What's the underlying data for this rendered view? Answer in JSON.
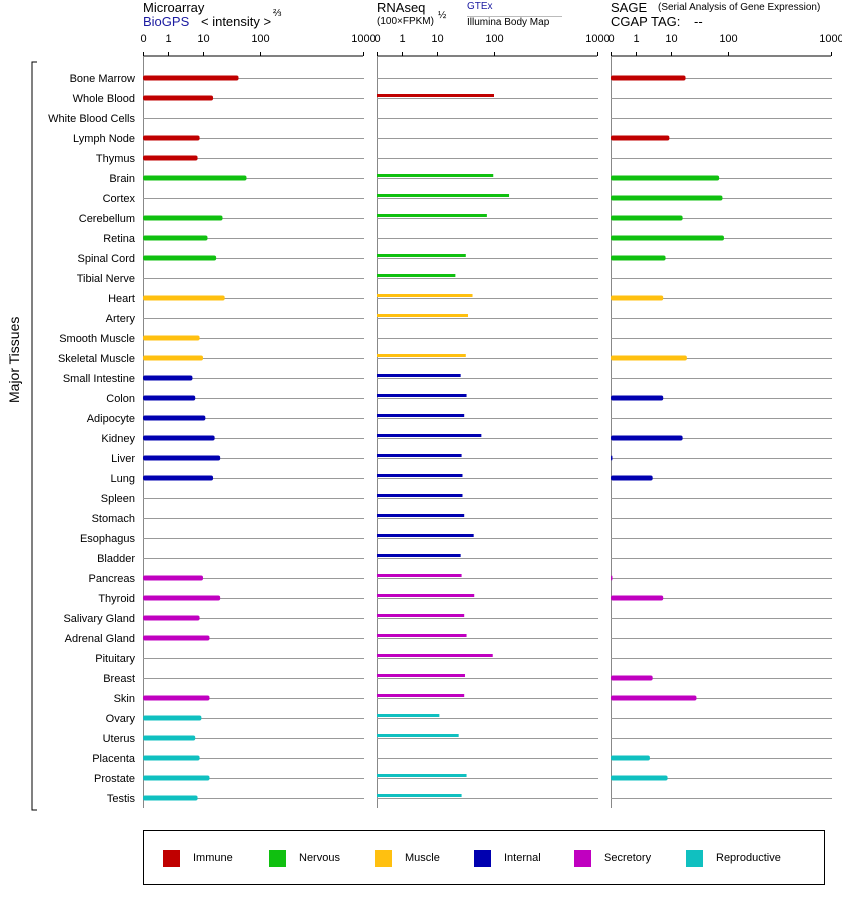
{
  "panels": {
    "microarray": {
      "title": "Microarray",
      "link": "BioGPS",
      "unit": "< intensity >",
      "unit_exp": "⅔"
    },
    "rnaseq": {
      "title": "RNAseq",
      "unit": "(100×FPKM)",
      "unit_exp": "½",
      "link1": "GTEx",
      "link2": "Illumina Body Map"
    },
    "sage": {
      "title": "SAGE",
      "subtitle": "(Serial Analysis of Gene Expression)",
      "tag_label": "CGAP TAG:",
      "tag_value": "--"
    }
  },
  "y_axis_title": "Major Tissues",
  "legend": [
    {
      "label": "Immune",
      "color": "#c00000"
    },
    {
      "label": "Nervous",
      "color": "#10c010"
    },
    {
      "label": "Muscle",
      "color": "#ffc010"
    },
    {
      "label": "Internal",
      "color": "#0000b0"
    },
    {
      "label": "Secretory",
      "color": "#c000c0"
    },
    {
      "label": "Reproductive",
      "color": "#10c0c0"
    }
  ],
  "chart_data": [
    {
      "type": "bar",
      "panel": "Microarray",
      "scale": "nonlinear",
      "x_ticks": [
        "0",
        "1",
        "10",
        "100",
        "1000"
      ],
      "categories": [
        "Bone Marrow",
        "Whole Blood",
        "White Blood Cells",
        "Lymph Node",
        "Thymus",
        "Brain",
        "Cortex",
        "Cerebellum",
        "Retina",
        "Spinal Cord",
        "Tibial Nerve",
        "Heart",
        "Artery",
        "Smooth Muscle",
        "Skeletal Muscle",
        "Small Intestine",
        "Colon",
        "Adipocyte",
        "Kidney",
        "Liver",
        "Lung",
        "Spleen",
        "Stomach",
        "Esophagus",
        "Bladder",
        "Pancreas",
        "Thyroid",
        "Salivary Gland",
        "Adrenal Gland",
        "Pituitary",
        "Breast",
        "Skin",
        "Ovary",
        "Uterus",
        "Placenta",
        "Prostate",
        "Testis"
      ],
      "groups": [
        "Immune",
        "Immune",
        "Immune",
        "Immune",
        "Immune",
        "Nervous",
        "Nervous",
        "Nervous",
        "Nervous",
        "Nervous",
        "Nervous",
        "Muscle",
        "Muscle",
        "Muscle",
        "Muscle",
        "Internal",
        "Internal",
        "Internal",
        "Internal",
        "Internal",
        "Internal",
        "Internal",
        "Internal",
        "Internal",
        "Internal",
        "Secretory",
        "Secretory",
        "Secretory",
        "Secretory",
        "Secretory",
        "Secretory",
        "Secretory",
        "Reproductive",
        "Reproductive",
        "Reproductive",
        "Reproductive",
        "Reproductive"
      ],
      "values": [
        42,
        15,
        null,
        8,
        7,
        58,
        null,
        22,
        12,
        17,
        null,
        24,
        null,
        8,
        10,
        5,
        6,
        11,
        16,
        20,
        15,
        null,
        null,
        null,
        null,
        10,
        20,
        8,
        13,
        null,
        null,
        13,
        9,
        6,
        8,
        13,
        7
      ]
    },
    {
      "type": "bar",
      "panel": "RNAseq",
      "scale": "nonlinear",
      "x_ticks": [
        "0",
        "1",
        "10",
        "100",
        "1000"
      ],
      "categories": [
        "Bone Marrow",
        "Whole Blood",
        "White Blood Cells",
        "Lymph Node",
        "Thymus",
        "Brain",
        "Cortex",
        "Cerebellum",
        "Retina",
        "Spinal Cord",
        "Tibial Nerve",
        "Heart",
        "Artery",
        "Smooth Muscle",
        "Skeletal Muscle",
        "Small Intestine",
        "Colon",
        "Adipocyte",
        "Kidney",
        "Liver",
        "Lung",
        "Spleen",
        "Stomach",
        "Esophagus",
        "Bladder",
        "Pancreas",
        "Thyroid",
        "Salivary Gland",
        "Adrenal Gland",
        "Pituitary",
        "Breast",
        "Skin",
        "Ovary",
        "Uterus",
        "Placenta",
        "Prostate",
        "Testis"
      ],
      "values": [
        null,
        100,
        null,
        null,
        null,
        97,
        140,
        75,
        null,
        32,
        21,
        42,
        35,
        null,
        32,
        26,
        33,
        30,
        60,
        27,
        28,
        28,
        30,
        44,
        26,
        27,
        45,
        30,
        33,
        95,
        31,
        30,
        11,
        24,
        null,
        33,
        27
      ]
    },
    {
      "type": "bar",
      "panel": "SAGE",
      "scale": "nonlinear",
      "x_ticks": [
        "0",
        "1",
        "10",
        "100",
        "1000"
      ],
      "categories": [
        "Bone Marrow",
        "Whole Blood",
        "White Blood Cells",
        "Lymph Node",
        "Thymus",
        "Brain",
        "Cortex",
        "Cerebellum",
        "Retina",
        "Spinal Cord",
        "Tibial Nerve",
        "Heart",
        "Artery",
        "Smooth Muscle",
        "Skeletal Muscle",
        "Small Intestine",
        "Colon",
        "Adipocyte",
        "Kidney",
        "Liver",
        "Lung",
        "Spleen",
        "Stomach",
        "Esophagus",
        "Bladder",
        "Pancreas",
        "Thyroid",
        "Salivary Gland",
        "Adrenal Gland",
        "Pituitary",
        "Breast",
        "Skin",
        "Ovary",
        "Uterus",
        "Placenta",
        "Prostate",
        "Testis"
      ],
      "values": [
        18,
        null,
        null,
        9,
        null,
        70,
        80,
        16,
        85,
        7,
        null,
        6,
        null,
        null,
        19,
        null,
        6,
        null,
        16,
        0.02,
        3,
        null,
        null,
        null,
        null,
        0.02,
        6,
        null,
        null,
        null,
        3,
        28,
        null,
        null,
        2.5,
        8,
        null
      ]
    }
  ]
}
